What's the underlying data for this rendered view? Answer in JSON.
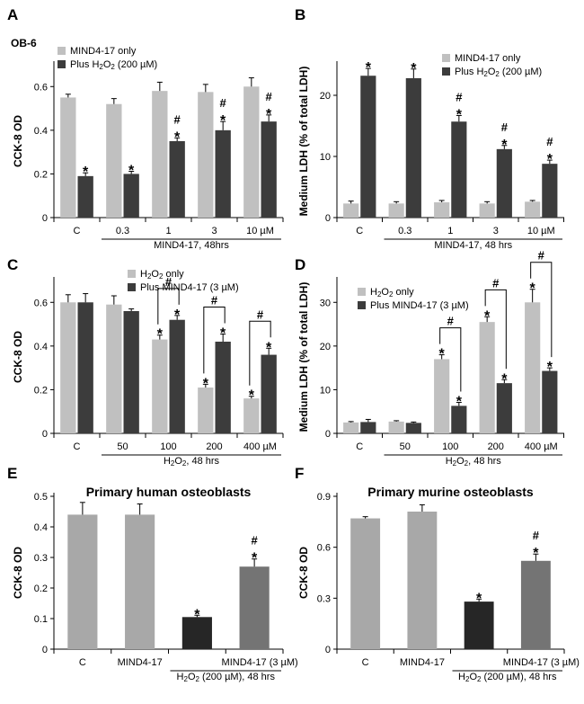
{
  "chart_data": [
    {
      "id": "A",
      "type": "bar",
      "letter": "A",
      "subtitle": "OB-6",
      "ylabel": "CCK-8 OD",
      "ylim": [
        0,
        0.7
      ],
      "yticks": [
        0,
        0.2,
        0.4,
        0.6
      ],
      "ytick_labels": [
        "0",
        "0.2",
        "0.4",
        "0.6"
      ],
      "categories": [
        "C",
        "0.3",
        "1",
        "3",
        "10 µM"
      ],
      "group_label": "MIND4-17, 48hrs",
      "group_from": 1,
      "legend": [
        "MIND4-17 only",
        "Plus H₂O₂ (200 µM)"
      ],
      "series": [
        {
          "name": "MIND4-17 only",
          "color": "#c0c0c0",
          "values": [
            0.55,
            0.52,
            0.58,
            0.575,
            0.6
          ],
          "errors": [
            0.015,
            0.025,
            0.04,
            0.035,
            0.04
          ],
          "marks": [
            "",
            "",
            "",
            "",
            ""
          ]
        },
        {
          "name": "Plus H₂O₂ (200 µM)",
          "color": "#3c3c3c",
          "values": [
            0.19,
            0.2,
            0.35,
            0.4,
            0.44
          ],
          "errors": [
            0.015,
            0.012,
            0.015,
            0.04,
            0.03
          ],
          "marks": [
            "*",
            "*",
            "#*",
            "#*",
            "#*"
          ]
        }
      ]
    },
    {
      "id": "B",
      "type": "bar",
      "letter": "B",
      "ylabel": "Medium LDH (% of total LDH)",
      "ylim": [
        0,
        25
      ],
      "yticks": [
        0,
        10,
        20
      ],
      "ytick_labels": [
        "0",
        "10",
        "20"
      ],
      "categories": [
        "C",
        "0.3",
        "1",
        "3",
        "10 µM"
      ],
      "group_label": "MIND4-17, 48 hrs",
      "group_from": 1,
      "legend": [
        "MIND4-17 only",
        "Plus H₂O₂ (200 µM)"
      ],
      "series": [
        {
          "name": "MIND4-17 only",
          "color": "#c0c0c0",
          "values": [
            2.3,
            2.3,
            2.5,
            2.3,
            2.6
          ],
          "errors": [
            0.4,
            0.3,
            0.3,
            0.3,
            0.2
          ],
          "marks": [
            "",
            "",
            "",
            "",
            ""
          ]
        },
        {
          "name": "Plus H₂O₂ (200 µM)",
          "color": "#3c3c3c",
          "values": [
            23.2,
            22.8,
            15.7,
            11.2,
            8.8
          ],
          "errors": [
            1.2,
            1.5,
            1.0,
            0.6,
            0.6
          ],
          "marks": [
            "*",
            "*",
            "#*",
            "#*",
            "#*"
          ]
        }
      ]
    },
    {
      "id": "C",
      "type": "bar",
      "letter": "C",
      "ylabel": "CCK-8 OD",
      "ylim": [
        0,
        0.7
      ],
      "yticks": [
        0,
        0.2,
        0.4,
        0.6
      ],
      "ytick_labels": [
        "0",
        "0.2",
        "0.4",
        "0.6"
      ],
      "categories": [
        "C",
        "50",
        "100",
        "200",
        "400 µM"
      ],
      "group_label": "H₂O₂, 48 hrs",
      "group_from": 1,
      "legend": [
        "H₂O₂ only",
        "Plus MIND4-17 (3 µM)"
      ],
      "series": [
        {
          "name": "H₂O₂ only",
          "color": "#c0c0c0",
          "values": [
            0.6,
            0.59,
            0.43,
            0.21,
            0.16
          ],
          "errors": [
            0.035,
            0.04,
            0.02,
            0.015,
            0.01
          ],
          "marks": [
            "",
            "",
            "*",
            "*",
            "*"
          ]
        },
        {
          "name": "Plus MIND4-17 (3 µM)",
          "color": "#3c3c3c",
          "values": [
            0.6,
            0.56,
            0.52,
            0.42,
            0.36
          ],
          "errors": [
            0.04,
            0.01,
            0.02,
            0.035,
            0.03
          ],
          "marks": [
            "",
            "",
            "*",
            "*",
            "*"
          ]
        }
      ],
      "brackets": [
        "",
        "",
        "#",
        "#",
        "#"
      ]
    },
    {
      "id": "D",
      "type": "bar",
      "letter": "D",
      "ylabel": "Medium LDH (% of total LDH)",
      "ylim": [
        0,
        35
      ],
      "yticks": [
        0,
        10,
        20,
        30
      ],
      "ytick_labels": [
        "0",
        "10",
        "20",
        "30"
      ],
      "categories": [
        "C",
        "50",
        "100",
        "200",
        "400 µM"
      ],
      "group_label": "H₂O₂, 48 hrs",
      "group_from": 1,
      "legend": [
        "H₂O₂ only",
        "Plus MIND4-17 (3 µM)"
      ],
      "series": [
        {
          "name": "H₂O₂ only",
          "color": "#c0c0c0",
          "values": [
            2.5,
            2.7,
            17.0,
            25.5,
            30.0
          ],
          "errors": [
            0.2,
            0.2,
            1.0,
            1.2,
            3.0
          ],
          "marks": [
            "",
            "",
            "*",
            "*",
            "*"
          ]
        },
        {
          "name": "Plus MIND4-17 (3 µM)",
          "color": "#3c3c3c",
          "values": [
            2.6,
            2.4,
            6.3,
            11.5,
            14.3
          ],
          "errors": [
            0.6,
            0.2,
            0.8,
            0.8,
            0.7
          ],
          "marks": [
            "",
            "",
            "*",
            "*",
            "*"
          ]
        }
      ],
      "brackets": [
        "",
        "",
        "#",
        "#",
        "#"
      ]
    },
    {
      "id": "E",
      "type": "bar",
      "letter": "E",
      "title": "Primary human osteoblasts",
      "ylabel": "CCK-8 OD",
      "ylim": [
        0,
        0.5
      ],
      "yticks": [
        0,
        0.1,
        0.2,
        0.3,
        0.4,
        0.5
      ],
      "ytick_labels": [
        "0",
        "0.1",
        "0.2",
        "0.3",
        "0.4",
        "0.5"
      ],
      "categories": [
        "C",
        "MIND4-17",
        "",
        "MIND4-17 (3 µM)"
      ],
      "group_label": "H₂O₂ (200 µM), 48 hrs",
      "group_from": 2,
      "bars": [
        {
          "value": 0.44,
          "error": 0.04,
          "color": "#a8a8a8",
          "mark": ""
        },
        {
          "value": 0.44,
          "error": 0.035,
          "color": "#a8a8a8",
          "mark": ""
        },
        {
          "value": 0.105,
          "error": 0.006,
          "color": "#262626",
          "mark": "*"
        },
        {
          "value": 0.27,
          "error": 0.025,
          "color": "#747474",
          "mark": "#*"
        }
      ]
    },
    {
      "id": "F",
      "type": "bar",
      "letter": "F",
      "title": "Primary murine osteoblasts",
      "ylabel": "CCK-8 OD",
      "ylim": [
        0,
        0.9
      ],
      "yticks": [
        0,
        0.3,
        0.6,
        0.9
      ],
      "ytick_labels": [
        "0",
        "0.3",
        "0.6",
        "0.9"
      ],
      "categories": [
        "C",
        "MIND4-17",
        "",
        "MIND4-17 (3 µM)"
      ],
      "group_label": "H₂O₂ (200 µM), 48 hrs",
      "group_from": 2,
      "bars": [
        {
          "value": 0.77,
          "error": 0.01,
          "color": "#a8a8a8",
          "mark": ""
        },
        {
          "value": 0.81,
          "error": 0.04,
          "color": "#a8a8a8",
          "mark": ""
        },
        {
          "value": 0.28,
          "error": 0.015,
          "color": "#262626",
          "mark": "*"
        },
        {
          "value": 0.52,
          "error": 0.04,
          "color": "#747474",
          "mark": "#*"
        }
      ]
    }
  ]
}
